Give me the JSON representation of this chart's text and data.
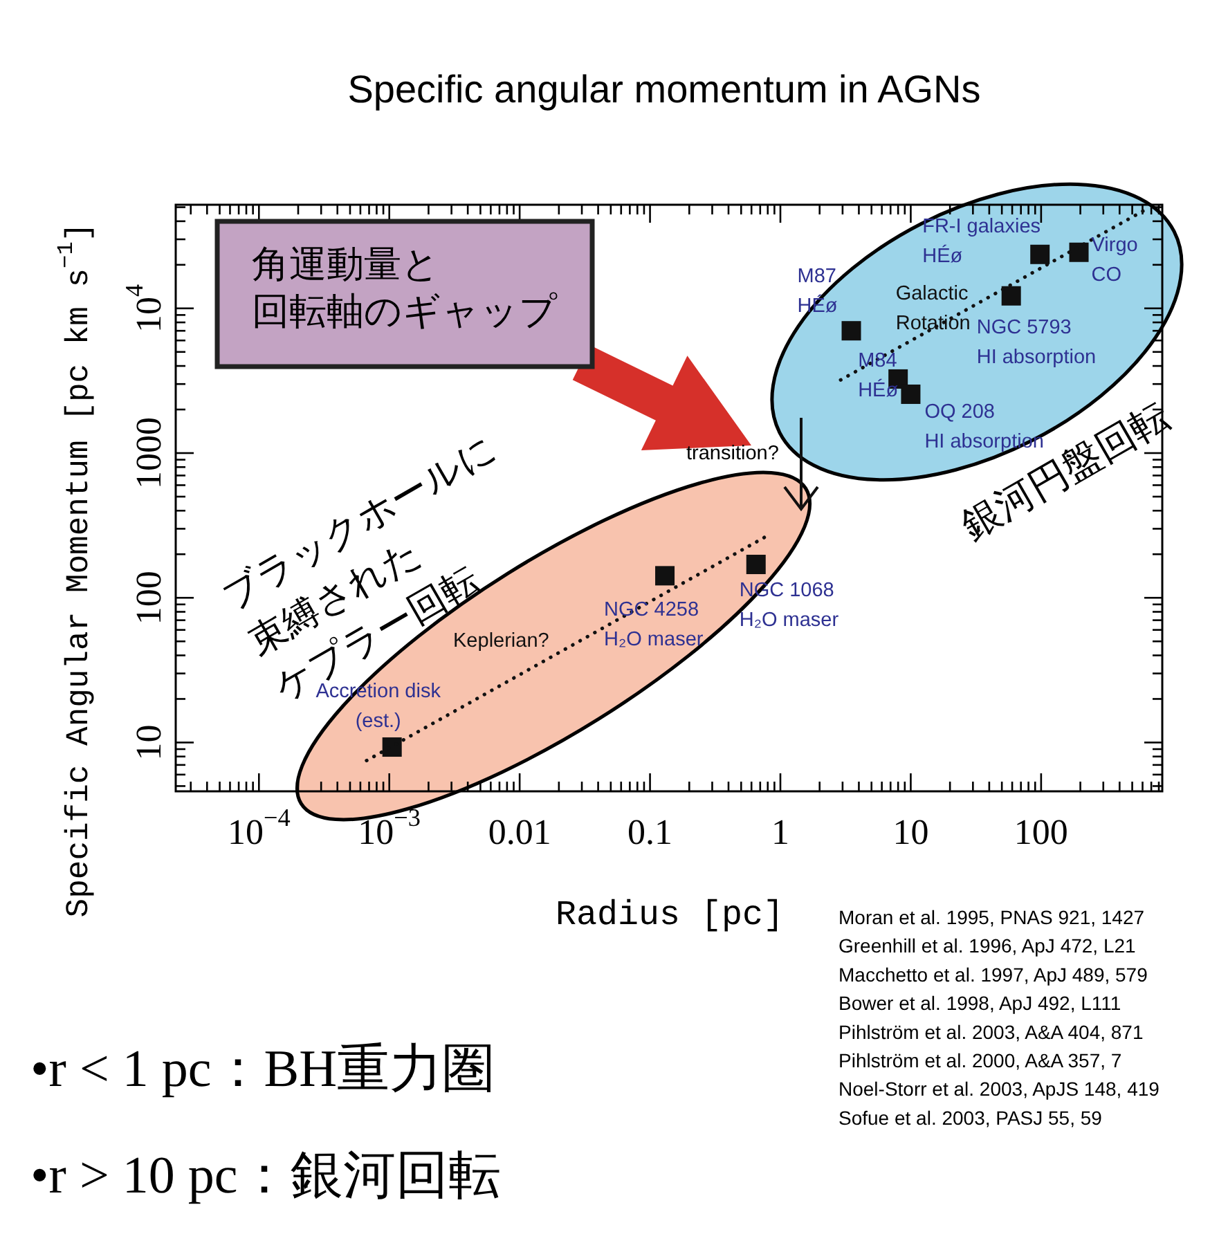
{
  "chart_data": {
    "type": "scatter",
    "title": "Specific angular momentum in AGNs",
    "xlabel": "Radius [pc]",
    "ylabel": "Specific Angular Momentum [pc km s$^{−1}$]",
    "log": "xy",
    "xlim": [
      2.3e-05,
      850
    ],
    "ylim": [
      4.6,
      52000
    ],
    "xticks": [
      {
        "value": 0.0001,
        "label": "10$^{−4}$"
      },
      {
        "value": 0.001,
        "label": "10$^{−3}$"
      },
      0.01,
      0.1,
      1,
      10,
      100
    ],
    "yticks": [
      10,
      100,
      1000,
      {
        "value": 10000,
        "label": "10$^{4}$"
      }
    ],
    "marker": "square",
    "series": [
      {
        "color": "#111111",
        "x": [
          0.00105,
          0.13,
          0.65,
          3.5,
          8,
          10,
          59,
          98,
          195
        ],
        "values": [
          9.3,
          142,
          170,
          7000,
          3250,
          2550,
          12200,
          23600,
          24400
        ]
      },
      {
        "type": "line",
        "color": "#111111",
        "marker": "none",
        "line_style": "dotted",
        "x": [
          0.00067,
          0.84
        ],
        "values": [
          7.5,
          276
        ]
      },
      {
        "type": "line",
        "color": "#111111",
        "marker": "none",
        "line_style": "dotted",
        "x": [
          2.9,
          630
        ],
        "values": [
          3200,
          48000
        ]
      }
    ],
    "annotations": [
      {
        "text": "Accretion disk\n(est.)",
        "x": 0.00105,
        "y": 9.3
      },
      {
        "text": "NGC 4258\nH₂O maser",
        "x": 0.13,
        "y": 142
      },
      {
        "text": "NGC 1068\nH₂O maser",
        "x": 0.65,
        "y": 170
      },
      {
        "text": "M87\nHÉø",
        "x": 3.5,
        "y": 7000
      },
      {
        "text": "M84\nHÉø",
        "x": 8,
        "y": 3250
      },
      {
        "text": "OQ 208\nHI absorption",
        "x": 10,
        "y": 2550
      },
      {
        "text": "NGC 5793\nHI absorption",
        "x": 59,
        "y": 12200
      },
      {
        "text": "FR-I galaxies\nHÉø",
        "x": 98,
        "y": 23600
      },
      {
        "text": "Virgo\nCO",
        "x": 195,
        "y": 24400
      },
      {
        "text": "Galactic\nRotation",
        "x": 28,
        "y": 9900
      },
      {
        "text": "Keplerian?",
        "x": 0.03,
        "y": 50
      },
      "transition?",
      "角運動量と",
      "回転軸のギャップ",
      "ブラックホールに",
      "束縛された",
      "ケプラー回転",
      "銀河円盤回転",
      "Moran et al. 1995, PNAS 921, 1427",
      "Greenhill et al. 1996, ApJ 472, L21",
      "Macchetto et al. 1997, ApJ 489, 579",
      "Bower et al. 1998, ApJ 492, L111",
      "Pihlström et al. 2003, A&A 404, 871",
      "Pihlström et al. 2000, A&A 357, 7",
      "Noel-Storr et al. 2003, ApJS 148, 419",
      "Sofue et al. 2003, PASJ 55, 59",
      "•r < 1 pc：BH重力圏",
      "•r > 10 pc：銀河回転"
    ]
  }
}
